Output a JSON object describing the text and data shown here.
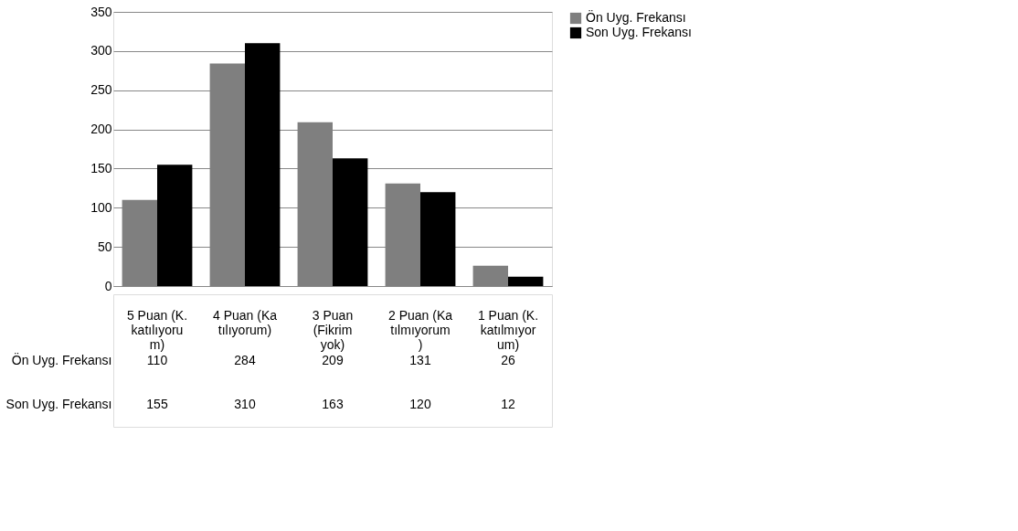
{
  "chart_data": {
    "type": "bar",
    "categories": [
      "5 Puan (K.katılıyorum)",
      "4 Puan (Katılıyorum)",
      "3 Puan (Fikrim yok)",
      "2 Puan (Katılmıyorum)",
      "1 Puan (K.katılmıyorum)"
    ],
    "series": [
      {
        "name": "Ön Uyg. Frekansı",
        "color": "#7f7f7f",
        "values": [
          110,
          284,
          209,
          131,
          26
        ]
      },
      {
        "name": "Son Uyg. Frekansı",
        "color": "#000000",
        "values": [
          155,
          310,
          163,
          120,
          12
        ]
      }
    ],
    "ylim": [
      0,
      350
    ],
    "yticks": [
      0,
      50,
      100,
      150,
      200,
      250,
      300,
      350
    ],
    "grid": "y",
    "legend": "right",
    "data_labels": true
  }
}
